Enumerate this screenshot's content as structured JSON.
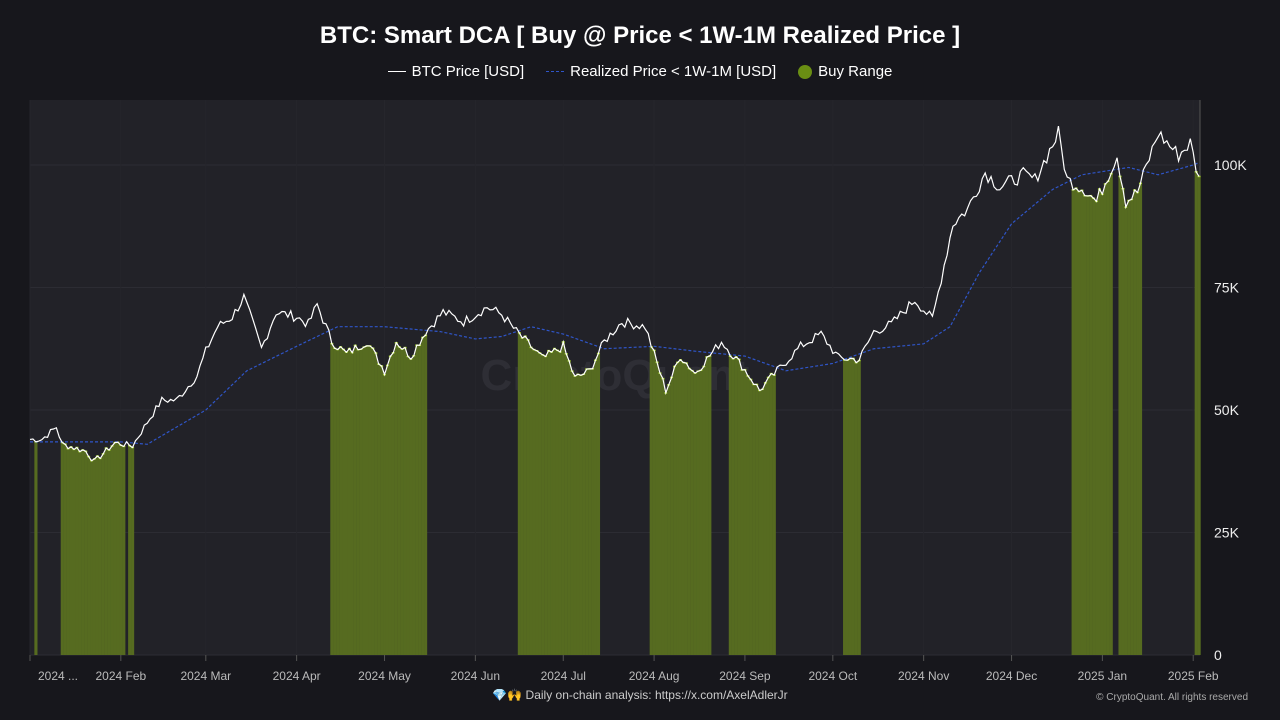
{
  "chart_data": {
    "type": "line",
    "title": "BTC: Smart DCA [ Buy @ Price < 1W-1M Realized Price ]",
    "watermark": "CryptoQuant",
    "legend_position": "top",
    "grid": true,
    "ylim": [
      0,
      110000
    ],
    "y_ticks": [
      {
        "v": 0,
        "label": "0"
      },
      {
        "v": 25000,
        "label": "25K"
      },
      {
        "v": 50000,
        "label": "50K"
      },
      {
        "v": 75000,
        "label": "75K"
      },
      {
        "v": 100000,
        "label": "100K"
      }
    ],
    "x_ticks": [
      {
        "d": "2024-01-01",
        "label": "2024 ..."
      },
      {
        "d": "2024-02-01",
        "label": "2024 Feb"
      },
      {
        "d": "2024-03-01",
        "label": "2024 Mar"
      },
      {
        "d": "2024-04-01",
        "label": "2024 Apr"
      },
      {
        "d": "2024-05-01",
        "label": "2024 May"
      },
      {
        "d": "2024-06-01",
        "label": "2024 Jun"
      },
      {
        "d": "2024-07-01",
        "label": "2024 Jul"
      },
      {
        "d": "2024-08-01",
        "label": "2024 Aug"
      },
      {
        "d": "2024-09-01",
        "label": "2024 Sep"
      },
      {
        "d": "2024-10-01",
        "label": "2024 Oct"
      },
      {
        "d": "2024-11-01",
        "label": "2024 Nov"
      },
      {
        "d": "2024-12-01",
        "label": "2024 Dec"
      },
      {
        "d": "2025-01-01",
        "label": "2025 Jan"
      },
      {
        "d": "2025-02-01",
        "label": "2025 Feb"
      }
    ],
    "series": [
      {
        "name": "BTC Price [USD]",
        "color": "#ffffff",
        "style": "solid",
        "points": [
          [
            "2024-01-01",
            44000
          ],
          [
            "2024-01-05",
            44000
          ],
          [
            "2024-01-10",
            46500
          ],
          [
            "2024-01-12",
            43000
          ],
          [
            "2024-01-20",
            41600
          ],
          [
            "2024-01-23",
            39500
          ],
          [
            "2024-01-30",
            43300
          ],
          [
            "2024-02-05",
            42700
          ],
          [
            "2024-02-10",
            47500
          ],
          [
            "2024-02-15",
            52000
          ],
          [
            "2024-02-20",
            52000
          ],
          [
            "2024-02-27",
            57000
          ],
          [
            "2024-03-01",
            62000
          ],
          [
            "2024-03-05",
            67000
          ],
          [
            "2024-03-10",
            69000
          ],
          [
            "2024-03-14",
            73000
          ],
          [
            "2024-03-20",
            62500
          ],
          [
            "2024-03-25",
            70000
          ],
          [
            "2024-04-01",
            69000
          ],
          [
            "2024-04-05",
            67500
          ],
          [
            "2024-04-08",
            71500
          ],
          [
            "2024-04-13",
            64000
          ],
          [
            "2024-04-18",
            61500
          ],
          [
            "2024-04-25",
            64000
          ],
          [
            "2024-05-01",
            58000
          ],
          [
            "2024-05-05",
            64000
          ],
          [
            "2024-05-10",
            61000
          ],
          [
            "2024-05-15",
            66000
          ],
          [
            "2024-05-21",
            70000
          ],
          [
            "2024-05-28",
            68000
          ],
          [
            "2024-06-05",
            71000
          ],
          [
            "2024-06-10",
            69500
          ],
          [
            "2024-06-15",
            66000
          ],
          [
            "2024-06-24",
            60500
          ],
          [
            "2024-07-01",
            63000
          ],
          [
            "2024-07-05",
            56500
          ],
          [
            "2024-07-10",
            58000
          ],
          [
            "2024-07-15",
            64000
          ],
          [
            "2024-07-21",
            68000
          ],
          [
            "2024-07-29",
            67000
          ],
          [
            "2024-08-05",
            54000
          ],
          [
            "2024-08-10",
            61000
          ],
          [
            "2024-08-15",
            57500
          ],
          [
            "2024-08-24",
            64000
          ],
          [
            "2024-08-31",
            59000
          ],
          [
            "2024-09-06",
            54000
          ],
          [
            "2024-09-12",
            58000
          ],
          [
            "2024-09-20",
            63000
          ],
          [
            "2024-09-27",
            65500
          ],
          [
            "2024-10-03",
            60600
          ],
          [
            "2024-10-10",
            60300
          ],
          [
            "2024-10-15",
            66000
          ],
          [
            "2024-10-21",
            67500
          ],
          [
            "2024-10-29",
            72500
          ],
          [
            "2024-11-04",
            68500
          ],
          [
            "2024-11-11",
            88000
          ],
          [
            "2024-11-16",
            91000
          ],
          [
            "2024-11-22",
            98500
          ],
          [
            "2024-11-27",
            95500
          ],
          [
            "2024-12-05",
            98000
          ],
          [
            "2024-12-09",
            97000
          ],
          [
            "2024-12-17",
            106500
          ],
          [
            "2024-12-20",
            97000
          ],
          [
            "2024-12-26",
            95000
          ],
          [
            "2024-12-30",
            92500
          ],
          [
            "2025-01-06",
            102000
          ],
          [
            "2025-01-09",
            92500
          ],
          [
            "2025-01-13",
            94500
          ],
          [
            "2025-01-20",
            106500
          ],
          [
            "2025-01-27",
            102000
          ],
          [
            "2025-01-31",
            104500
          ],
          [
            "2025-02-03",
            97000
          ]
        ]
      },
      {
        "name": "Realized Price < 1W-1M [USD]",
        "color": "#2f55c8",
        "style": "dashed",
        "points": [
          [
            "2024-01-01",
            43500
          ],
          [
            "2024-02-01",
            43500
          ],
          [
            "2024-02-10",
            43000
          ],
          [
            "2024-03-01",
            50000
          ],
          [
            "2024-03-15",
            58000
          ],
          [
            "2024-04-01",
            63000
          ],
          [
            "2024-04-15",
            67000
          ],
          [
            "2024-05-01",
            67000
          ],
          [
            "2024-05-20",
            66000
          ],
          [
            "2024-06-01",
            64500
          ],
          [
            "2024-06-10",
            65000
          ],
          [
            "2024-06-20",
            67000
          ],
          [
            "2024-07-01",
            65500
          ],
          [
            "2024-07-15",
            62500
          ],
          [
            "2024-08-01",
            63000
          ],
          [
            "2024-08-15",
            62000
          ],
          [
            "2024-09-01",
            61000
          ],
          [
            "2024-09-15",
            58000
          ],
          [
            "2024-10-01",
            59500
          ],
          [
            "2024-10-15",
            62500
          ],
          [
            "2024-11-01",
            63500
          ],
          [
            "2024-11-10",
            67000
          ],
          [
            "2024-11-20",
            78000
          ],
          [
            "2024-12-01",
            88000
          ],
          [
            "2024-12-15",
            95000
          ],
          [
            "2024-12-25",
            98000
          ],
          [
            "2025-01-10",
            99500
          ],
          [
            "2025-01-20",
            98000
          ],
          [
            "2025-02-01",
            100000
          ],
          [
            "2025-02-03",
            100500
          ]
        ]
      },
      {
        "name": "Buy Range",
        "color": "#6a8e13",
        "style": "area"
      }
    ]
  },
  "footer": {
    "text": "💎🙌 Daily on-chain analysis: https://x.com/AxelAdlerJr",
    "copyright": "© CryptoQuant. All rights reserved"
  }
}
